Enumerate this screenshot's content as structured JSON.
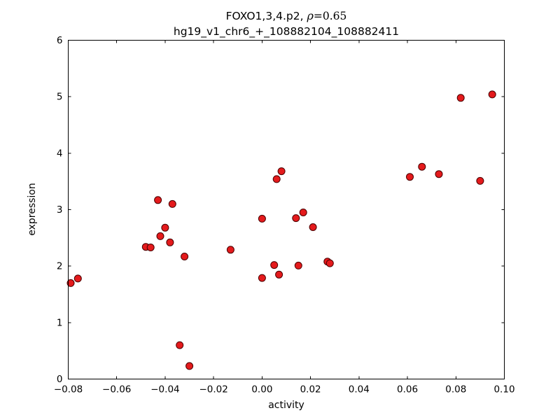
{
  "figure": {
    "title_prefix": "FOXO1,3,4.p2, ",
    "title_rho": "ρ",
    "title_eq": "=0.65",
    "subtitle": "hg19_v1_chr6_+_108882104_108882411",
    "xlabel": "activity",
    "ylabel": "expression"
  },
  "chart_data": {
    "type": "scatter",
    "title": "FOXO1,3,4.p2, ρ=0.65",
    "subtitle": "hg19_v1_chr6_+_108882104_108882411",
    "xlabel": "activity",
    "ylabel": "expression",
    "xlim": [
      -0.08,
      0.1
    ],
    "ylim": [
      0,
      6
    ],
    "xticks": [
      -0.08,
      -0.06,
      -0.04,
      -0.02,
      0.0,
      0.02,
      0.04,
      0.06,
      0.08,
      0.1
    ],
    "xtick_labels": [
      "−0.08",
      "−0.06",
      "−0.04",
      "−0.02",
      "0.00",
      "0.02",
      "0.04",
      "0.06",
      "0.08",
      "0.10"
    ],
    "yticks": [
      0,
      1,
      2,
      3,
      4,
      5,
      6
    ],
    "ytick_labels": [
      "0",
      "1",
      "2",
      "3",
      "4",
      "5",
      "6"
    ],
    "grid": false,
    "legend": null,
    "marker": {
      "shape": "circle",
      "fill": "#e41a1c",
      "edge": "#4a0000",
      "radius": 5
    },
    "points": [
      [
        -0.079,
        1.7
      ],
      [
        -0.076,
        1.78
      ],
      [
        -0.048,
        2.34
      ],
      [
        -0.046,
        2.33
      ],
      [
        -0.043,
        3.17
      ],
      [
        -0.042,
        2.53
      ],
      [
        -0.04,
        2.68
      ],
      [
        -0.038,
        2.42
      ],
      [
        -0.037,
        3.1
      ],
      [
        -0.034,
        0.6
      ],
      [
        -0.032,
        2.17
      ],
      [
        -0.03,
        0.23
      ],
      [
        -0.013,
        2.29
      ],
      [
        0.0,
        2.84
      ],
      [
        0.0,
        1.79
      ],
      [
        0.005,
        2.02
      ],
      [
        0.006,
        3.54
      ],
      [
        0.007,
        1.85
      ],
      [
        0.008,
        3.68
      ],
      [
        0.014,
        2.85
      ],
      [
        0.015,
        2.01
      ],
      [
        0.017,
        2.95
      ],
      [
        0.021,
        2.69
      ],
      [
        0.027,
        2.08
      ],
      [
        0.028,
        2.05
      ],
      [
        0.061,
        3.58
      ],
      [
        0.066,
        3.76
      ],
      [
        0.073,
        3.63
      ],
      [
        0.082,
        4.98
      ],
      [
        0.09,
        3.51
      ],
      [
        0.095,
        5.04
      ]
    ]
  }
}
